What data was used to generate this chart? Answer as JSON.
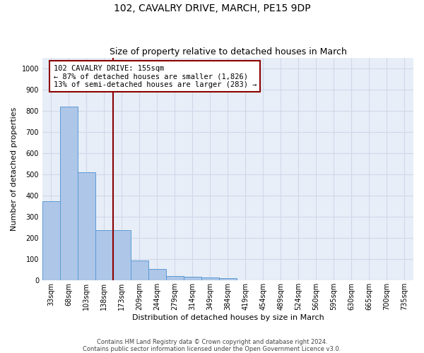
{
  "title": "102, CAVALRY DRIVE, MARCH, PE15 9DP",
  "subtitle": "Size of property relative to detached houses in March",
  "xlabel": "Distribution of detached houses by size in March",
  "ylabel": "Number of detached properties",
  "bar_values": [
    375,
    820,
    512,
    238,
    238,
    93,
    53,
    22,
    18,
    15,
    10,
    0,
    0,
    0,
    0,
    0,
    0,
    0,
    0,
    0,
    0
  ],
  "bar_labels": [
    "33sqm",
    "68sqm",
    "103sqm",
    "138sqm",
    "173sqm",
    "209sqm",
    "244sqm",
    "279sqm",
    "314sqm",
    "349sqm",
    "384sqm",
    "419sqm",
    "454sqm",
    "489sqm",
    "524sqm",
    "560sqm",
    "595sqm",
    "630sqm",
    "665sqm",
    "700sqm",
    "735sqm"
  ],
  "bar_color": "#aec6e8",
  "bar_edge_color": "#5b9bd5",
  "vline_color": "#8b0000",
  "annotation_line1": "102 CAVALRY DRIVE: 155sqm",
  "annotation_line2": "← 87% of detached houses are smaller (1,826)",
  "annotation_line3": "13% of semi-detached houses are larger (283) →",
  "annotation_box_color": "#ffffff",
  "annotation_box_edge": "#8b0000",
  "ylim": [
    0,
    1050
  ],
  "yticks": [
    0,
    100,
    200,
    300,
    400,
    500,
    600,
    700,
    800,
    900,
    1000
  ],
  "grid_color": "#d0d8e8",
  "bg_color": "#e8eef8",
  "footer1": "Contains HM Land Registry data © Crown copyright and database right 2024.",
  "footer2": "Contains public sector information licensed under the Open Government Licence v3.0.",
  "title_fontsize": 10,
  "subtitle_fontsize": 9,
  "axis_label_fontsize": 8,
  "tick_fontsize": 7,
  "annotation_fontsize": 7.5
}
